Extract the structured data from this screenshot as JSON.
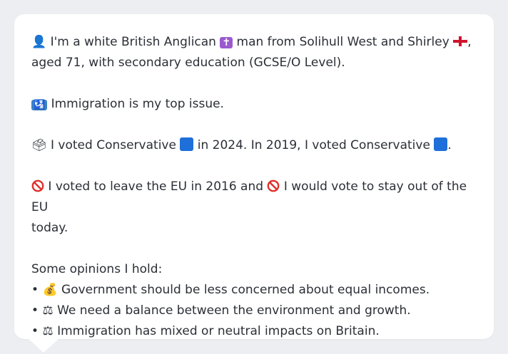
{
  "profile": {
    "intro_icon": "bust-in-silhouette-icon",
    "intro_a": "I'm a white British Anglican",
    "cross_icon": "latin-cross-icon",
    "intro_b": "man from Solihull West and Shirley",
    "flag_icon": "england-flag-icon",
    "intro_c": ",",
    "intro_d": "aged 71, with secondary education (GCSE/O Level)."
  },
  "issue": {
    "icon": "passport-control-icon",
    "text": "Immigration is my top issue."
  },
  "vote": {
    "icon": "ballot-box-icon",
    "a": "I voted Conservative",
    "b": "in 2024. In 2019, I voted Conservative",
    "c": ".",
    "party_color": "#1e6fd9"
  },
  "eu": {
    "icon": "prohibited-icon",
    "a": "I voted to leave the EU in 2016 and",
    "b": "I would vote to stay out of the EU",
    "c": "today."
  },
  "opinions": {
    "heading": "Some opinions I hold:",
    "bullet": "•",
    "items": [
      {
        "icon": "money-bag-icon",
        "text": "Government should be less concerned about equal incomes."
      },
      {
        "icon": "balance-scale-icon",
        "text": "We need a balance between the environment and growth."
      },
      {
        "icon": "balance-scale-icon",
        "text": "Immigration has mixed or neutral impacts on Britain."
      }
    ]
  }
}
